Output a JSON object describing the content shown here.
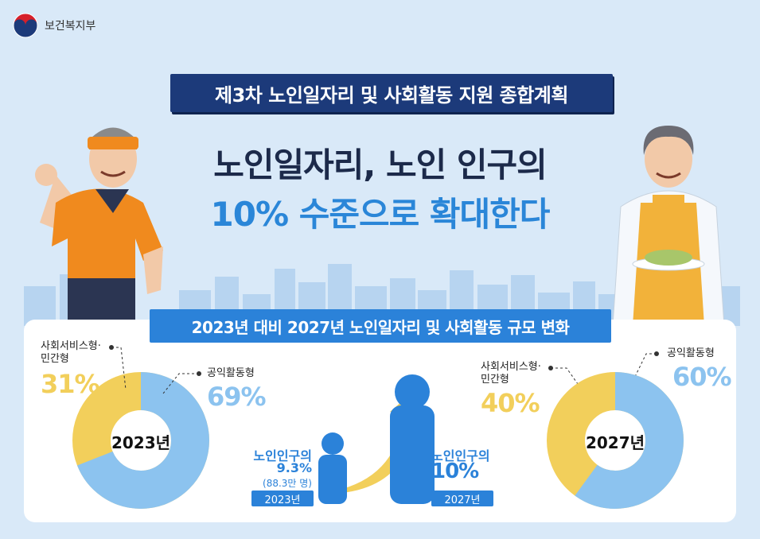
{
  "ministry": {
    "name": "보건복지부"
  },
  "plan_banner": "제3차 노인일자리 및 사회활동 지원 종합계획",
  "headline": {
    "line1": "노인일자리, 노인 인구의",
    "line2": "10% 수준으로 확대한다"
  },
  "section_banner": "2023년 대비 2027년 노인일자리 및 사회활동 규모 변화",
  "donut_2023": {
    "year": "2023년",
    "social_label_1": "사회서비스형·",
    "social_label_2": "민간형",
    "social_pct": "31%",
    "public_label": "공익활동형",
    "public_pct": "69%",
    "social_value": 31,
    "public_value": 69
  },
  "donut_2027": {
    "year": "2027년",
    "social_label_1": "사회서비스형·",
    "social_label_2": "민간형",
    "social_pct": "40%",
    "public_label": "공익활동형",
    "public_pct": "60%",
    "social_value": 40,
    "public_value": 60
  },
  "population_2023": {
    "label": "노인인구의",
    "pct": "9.3%",
    "note": "(88.3만 명)",
    "year": "2023년"
  },
  "population_2027": {
    "label": "노인인구의",
    "pct": "10%",
    "year": "2027년"
  },
  "colors": {
    "navy": "#1c3a7a",
    "blue": "#2b82d9",
    "light_blue": "#8cc3ef",
    "yellow": "#f2cf5b",
    "background": "#d9e9f8"
  }
}
